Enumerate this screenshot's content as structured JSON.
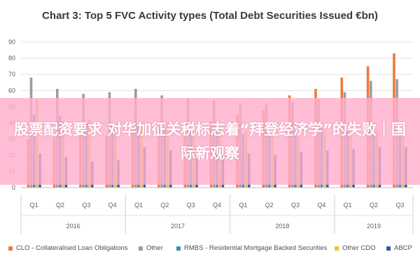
{
  "overlay": {
    "text": "股票配资要求 对华加征关税标志着“拜登经济学”的失败｜国际新观察"
  },
  "chart_data": {
    "type": "bar",
    "title": "Chart 3: Top 5 FVC Activity types (Total Debt Securities Issued €bn)",
    "xlabel": "",
    "ylabel": "",
    "ylim": [
      0,
      90
    ],
    "yticks": [
      0,
      10,
      20,
      30,
      40,
      50,
      60,
      70,
      80,
      90
    ],
    "grid": true,
    "legend_position": "bottom",
    "categories": [
      "Q1",
      "Q2",
      "Q3",
      "Q4",
      "Q1",
      "Q2",
      "Q3",
      "Q4",
      "Q1",
      "Q2",
      "Q3",
      "Q4",
      "Q1",
      "Q2",
      "Q3"
    ],
    "groups": [
      {
        "label": "2016",
        "count": 4
      },
      {
        "label": "2017",
        "count": 4
      },
      {
        "label": "2018",
        "count": 4
      },
      {
        "label": "2019",
        "count": 3
      }
    ],
    "series": [
      {
        "name": "CLO - Collateralised Loan Obligations",
        "color": "#f0793a",
        "values": [
          30,
          31,
          33,
          32,
          36,
          38,
          40,
          41,
          45,
          48,
          57,
          61,
          68,
          75,
          83
        ]
      },
      {
        "name": "Other",
        "color": "#9d9d9d",
        "values": [
          68,
          61,
          58,
          59,
          61,
          57,
          55,
          54,
          52,
          52,
          53,
          55,
          59,
          66,
          67
        ]
      },
      {
        "name": "RMBS - Residential Mortgage Backed Securities",
        "color": "#3b8fc0",
        "values": [
          45,
          44,
          40,
          39,
          38,
          37,
          35,
          34,
          33,
          34,
          35,
          37,
          35,
          33,
          32
        ]
      },
      {
        "name": "Other CDO",
        "color": "#f2c02e",
        "values": [
          55,
          41,
          42,
          33,
          41,
          40,
          38,
          37,
          35,
          34,
          33,
          35,
          34,
          36,
          35
        ]
      },
      {
        "name": "ABCP",
        "color": "#3159a8",
        "values": [
          21,
          19,
          16,
          17,
          25,
          23,
          20,
          19,
          21,
          20,
          22,
          23,
          24,
          25,
          25
        ]
      }
    ]
  }
}
